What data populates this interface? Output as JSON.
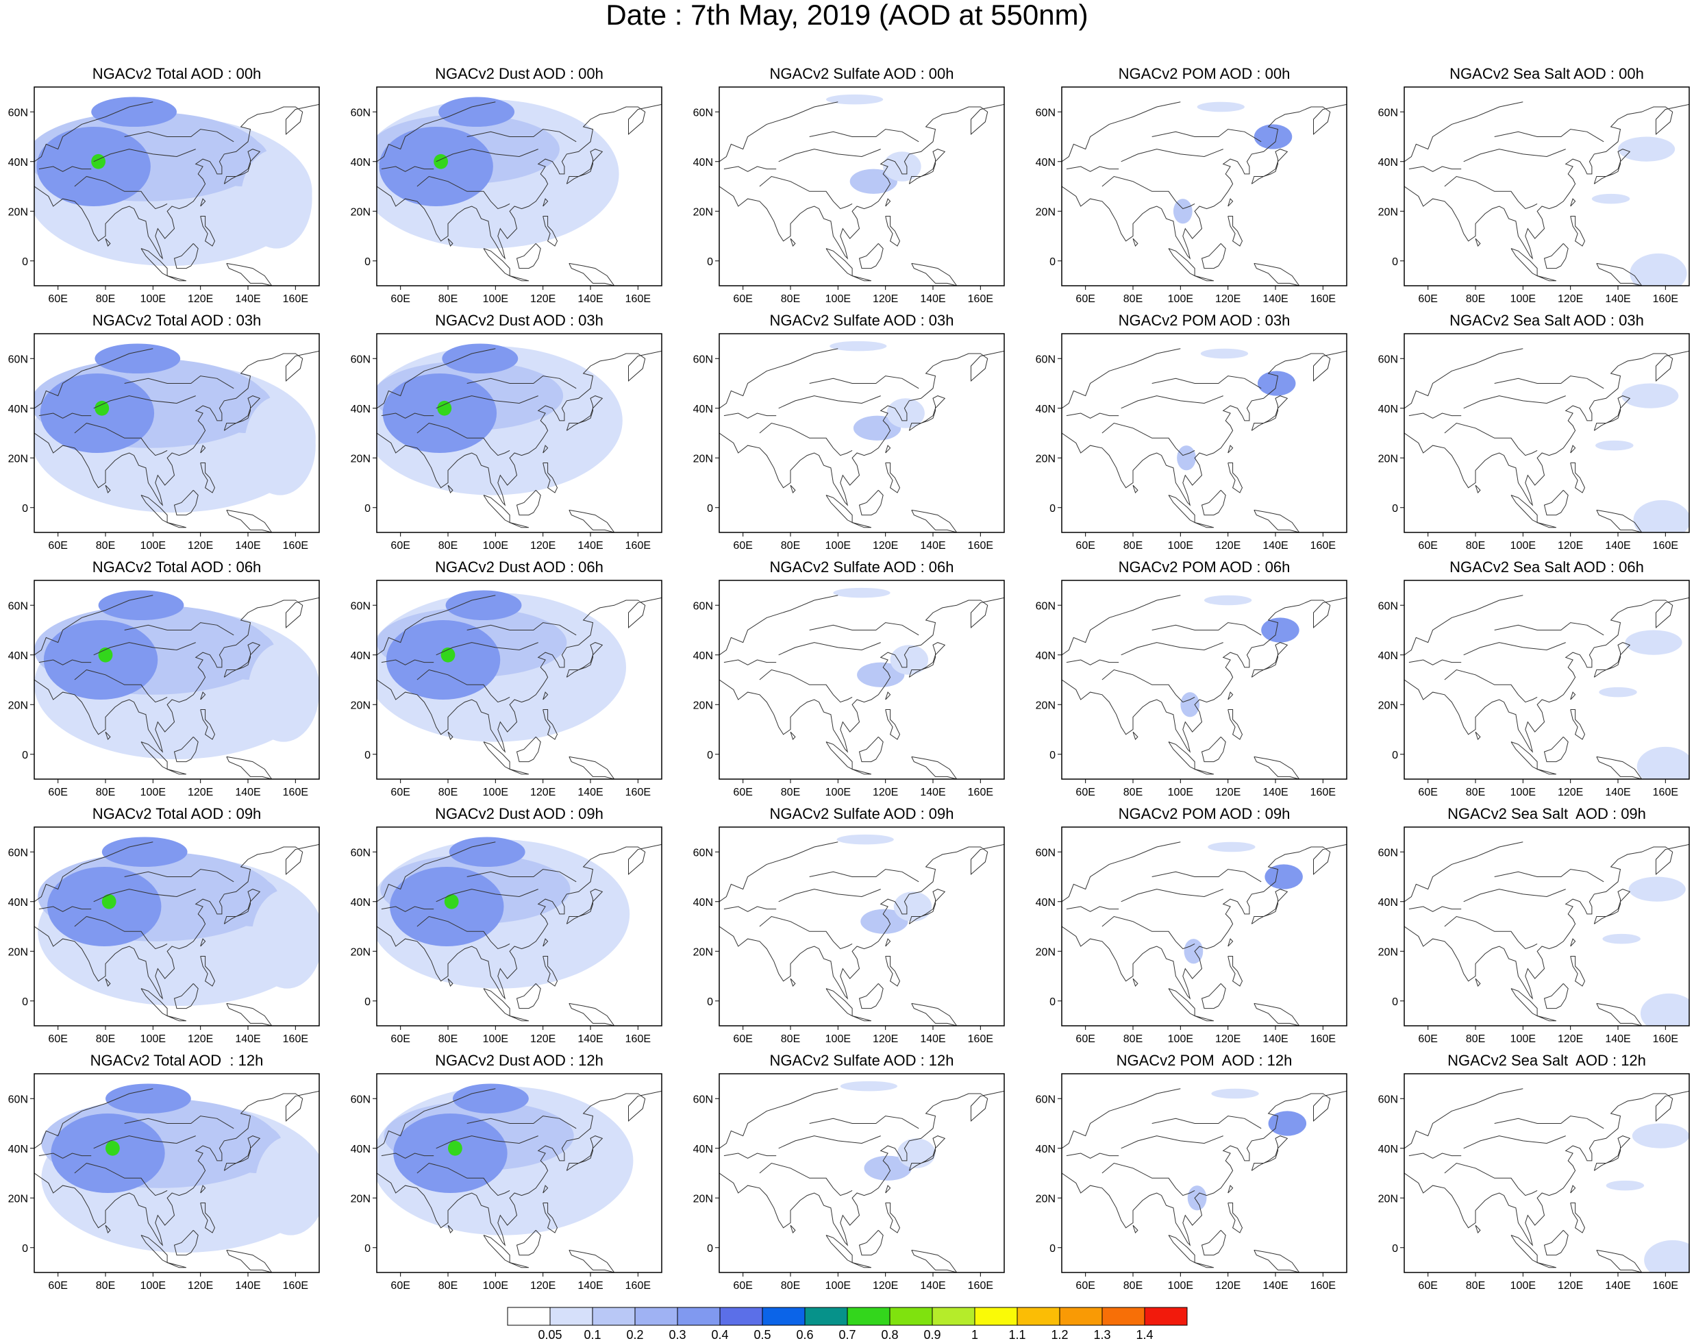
{
  "title": "Date : 7th May, 2019 (AOD at 550nm)",
  "panels": [
    [
      "NGACv2 Total AOD : 00h",
      "NGACv2 Dust AOD : 00h",
      "NGACv2 Sulfate AOD : 00h",
      "NGACv2 POM AOD : 00h",
      "NGACv2 Sea Salt AOD : 00h"
    ],
    [
      "NGACv2 Total AOD : 03h",
      "NGACv2 Dust AOD : 03h",
      "NGACv2 Sulfate AOD : 03h",
      "NGACv2 POM AOD : 03h",
      "NGACv2 Sea Salt AOD : 03h"
    ],
    [
      "NGACv2 Total AOD : 06h",
      "NGACv2 Dust AOD : 06h",
      "NGACv2 Sulfate AOD : 06h",
      "NGACv2 POM AOD : 06h",
      "NGACv2 Sea Salt AOD : 06h"
    ],
    [
      "NGACv2 Total AOD : 09h",
      "NGACv2 Dust AOD : 09h",
      "NGACv2 Sulfate AOD : 09h",
      "NGACv2 POM AOD : 09h",
      "NGACv2 Sea Salt  AOD : 09h"
    ],
    [
      "NGACv2 Total AOD  : 12h",
      "NGACv2 Dust AOD : 12h",
      "NGACv2 Sulfate AOD : 12h",
      "NGACv2 POM  AOD : 12h",
      "NGACv2 Sea Salt  AOD : 12h"
    ]
  ],
  "map_axes": {
    "lon_ticks": [
      "60E",
      "80E",
      "100E",
      "120E",
      "140E",
      "160E"
    ],
    "lat_ticks": [
      "60N",
      "40N",
      "20N",
      "0"
    ],
    "lon_range": [
      50,
      170
    ],
    "lat_range": [
      -10,
      70
    ]
  },
  "colorbar": {
    "labels": [
      "0.05",
      "0.1",
      "0.2",
      "0.3",
      "0.4",
      "0.5",
      "0.6",
      "0.7",
      "0.8",
      "0.9",
      "1",
      "1.1",
      "1.2",
      "1.3",
      "1.4"
    ],
    "colors": [
      "#ffffff",
      "#d6e0fa",
      "#b9c8f6",
      "#9fb2f3",
      "#8099f0",
      "#5b6fe8",
      "#0b64e8",
      "#06928a",
      "#33d61c",
      "#7fe20e",
      "#b5ec2a",
      "#fafa06",
      "#fbbd05",
      "#f99a05",
      "#f76f07",
      "#f21a0c"
    ]
  },
  "map_colors": {
    "coastline": "#333333",
    "light": "#d6e0fa",
    "mid": "#b9c8f6",
    "dark": "#8099f0",
    "darker": "#5b6fe8",
    "hotspot": "#33d61c"
  }
}
